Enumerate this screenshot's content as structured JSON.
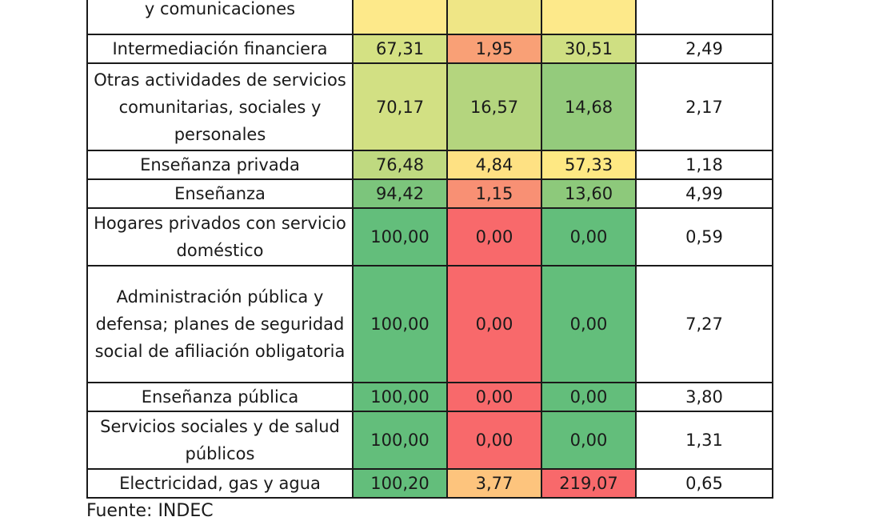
{
  "rows": [
    {
      "sector": "y comunicaciones",
      "v1": "",
      "v2": "",
      "v3": "",
      "last": "",
      "colors": [
        "#FDE98A",
        "#EFE686",
        "#FDE98A"
      ]
    },
    {
      "sector": "Intermediación financiera",
      "v1": "67,31",
      "v2": "1,95",
      "v3": "30,51",
      "last": "2,49",
      "colors": [
        "#D4E183",
        "#F9A076",
        "#CFDF82"
      ]
    },
    {
      "sector": "Otras actividades de servicios comunitarias, sociales y personales",
      "v1": "70,17",
      "v2": "16,57",
      "v3": "14,68",
      "last": "2,17",
      "colors": [
        "#D2E083",
        "#B4D57E",
        "#94CB7C"
      ]
    },
    {
      "sector": "Enseñanza privada",
      "v1": "76,48",
      "v2": "4,84",
      "v3": "57,33",
      "last": "1,18",
      "colors": [
        "#BFD980",
        "#FEE183",
        "#FEE883"
      ]
    },
    {
      "sector": "Enseñanza",
      "v1": "94,42",
      "v2": "1,15",
      "v3": "13,60",
      "last": "4,99",
      "colors": [
        "#7CC57C",
        "#F89074",
        "#8DC97B"
      ]
    },
    {
      "sector": "Hogares privados con servicio doméstico",
      "v1": "100,00",
      "v2": "0,00",
      "v3": "0,00",
      "last": "0,59",
      "colors": [
        "#63BE7B",
        "#F8696B",
        "#63BE7B"
      ]
    },
    {
      "sector": "Administración pública y defensa; planes de seguridad social de afiliación obligatoria",
      "v1": "100,00",
      "v2": "0,00",
      "v3": "0,00",
      "last": "7,27",
      "colors": [
        "#63BE7B",
        "#F8696B",
        "#63BE7B"
      ]
    },
    {
      "sector": "Enseñanza pública",
      "v1": "100,00",
      "v2": "0,00",
      "v3": "0,00",
      "last": "3,80",
      "colors": [
        "#63BE7B",
        "#F8696B",
        "#63BE7B"
      ]
    },
    {
      "sector": "Servicios sociales y de salud públicos",
      "v1": "100,00",
      "v2": "0,00",
      "v3": "0,00",
      "last": "1,31",
      "colors": [
        "#63BE7B",
        "#F8696B",
        "#63BE7B"
      ]
    },
    {
      "sector": "Electricidad, gas y agua",
      "v1": "100,20",
      "v2": "3,77",
      "v3": "219,07",
      "last": "0,65",
      "colors": [
        "#63BE7B",
        "#FDC47D",
        "#F8696B"
      ]
    }
  ],
  "source": "Fuente: INDEC"
}
